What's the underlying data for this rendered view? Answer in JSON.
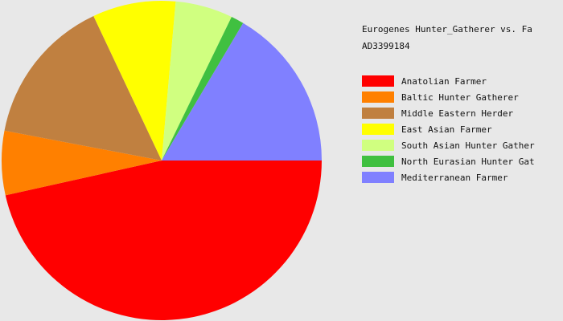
{
  "chart_data": {
    "type": "pie",
    "title": "Eurogenes Hunter_Gatherer vs. Fa",
    "subtitle": "AD3399184",
    "slices": [
      {
        "label": "Anatolian Farmer",
        "value": 46.5,
        "color": "#ff0000"
      },
      {
        "label": "Baltic Hunter Gatherer",
        "value": 6.5,
        "color": "#ff8000"
      },
      {
        "label": "Middle Eastern Herder",
        "value": 15.0,
        "color": "#c08040"
      },
      {
        "label": "East Asian Farmer",
        "value": 8.4,
        "color": "#ffff00"
      },
      {
        "label": "South Asian Hunter Gather",
        "value": 5.8,
        "color": "#d0ff80"
      },
      {
        "label": "North Eurasian Hunter Gat",
        "value": 1.3,
        "color": "#40c040"
      },
      {
        "label": "Mediterranean Farmer",
        "value": 16.5,
        "color": "#8080ff"
      }
    ],
    "legend_position": "right"
  }
}
